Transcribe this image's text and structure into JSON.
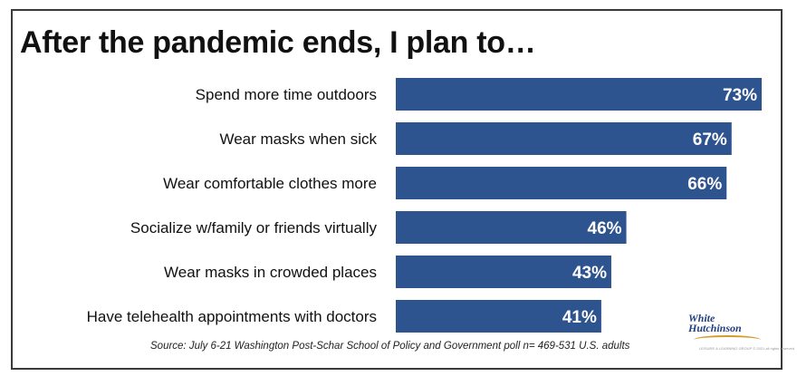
{
  "title": "After the pandemic ends, I plan to…",
  "chart_data": {
    "type": "bar",
    "orientation": "horizontal",
    "title": "After the pandemic ends, I plan to…",
    "categories": [
      "Spend more time outdoors",
      "Wear masks when sick",
      "Wear comfortable clothes more",
      "Socialize w/family or friends virtually",
      "Wear masks in crowded places",
      "Have telehealth appointments with doctors"
    ],
    "values": [
      73,
      67,
      66,
      46,
      43,
      41
    ],
    "value_labels": [
      "73%",
      "67%",
      "66%",
      "46%",
      "43%",
      "41%"
    ],
    "unit": "%",
    "xlim": [
      0,
      73
    ],
    "grid": false,
    "legend": "none",
    "bar_color": "#2e5490",
    "label_color": "#ffffff"
  },
  "source": "Source: July 6-21 Washington Post-Schar School of Policy and Government poll n= 469-531 U.S. adults",
  "logo": {
    "line1": "White",
    "line2": "Hutchinson",
    "tagline": "LEISURE & LEARNING GROUP",
    "copyright": "© 2021 all rights reserved",
    "color": "#23407e"
  }
}
